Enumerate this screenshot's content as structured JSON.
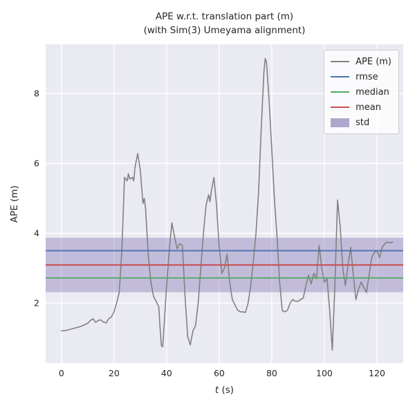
{
  "figure": {
    "title_line1": "APE w.r.t. translation part (m)",
    "title_line2": "(with Sim(3) Umeyama alignment)",
    "ylabel": "APE (m)",
    "xlabel_var": "t",
    "xlabel_rest": " (s)"
  },
  "colors": {
    "figure_bg": "#ffffff",
    "plot_bg": "#eaeaf2",
    "grid": "#ffffff",
    "text": "#262626",
    "ape": "#808080",
    "rmse": "#4c72b0",
    "median": "#55a868",
    "mean": "#c44e52",
    "std": "#8172b2"
  },
  "legend": {
    "items": [
      {
        "label": "APE (m)",
        "swatch": "line",
        "color_key": "ape"
      },
      {
        "label": "rmse",
        "swatch": "line",
        "color_key": "rmse"
      },
      {
        "label": "median",
        "swatch": "line",
        "color_key": "median"
      },
      {
        "label": "mean",
        "swatch": "line",
        "color_key": "mean"
      },
      {
        "label": "std",
        "swatch": "band",
        "color_key": "std"
      }
    ]
  },
  "chart_data": {
    "type": "line",
    "title": "APE w.r.t. translation part (m)\n(with Sim(3) Umeyama alignment)",
    "xlabel": "t (s)",
    "ylabel": "APE (m)",
    "xlim": [
      -6,
      130
    ],
    "ylim": [
      0.28,
      9.41
    ],
    "xticks": [
      0,
      20,
      40,
      60,
      80,
      100,
      120
    ],
    "yticks": [
      2,
      4,
      6,
      8
    ],
    "grid": true,
    "legend_position": "upper right",
    "stats": {
      "rmse": 3.5,
      "mean": 3.09,
      "median": 2.72,
      "std": 0.78,
      "std_band": [
        2.31,
        3.87
      ]
    },
    "series": [
      {
        "name": "APE (m)",
        "x": [
          0,
          2,
          4,
          6,
          8,
          10,
          11,
          12,
          13,
          14,
          15,
          16,
          17,
          18,
          19,
          20,
          21,
          22,
          23,
          24,
          25,
          25.5,
          26,
          27,
          27.5,
          28,
          29,
          30,
          31,
          31.5,
          32,
          33,
          34,
          35,
          36,
          37,
          37.5,
          38,
          38.5,
          39,
          40,
          41,
          42,
          43,
          44,
          45,
          46,
          47,
          48,
          49,
          50,
          51,
          52,
          53,
          54,
          55,
          56,
          56.5,
          57,
          58,
          59,
          60,
          61,
          62,
          63,
          64,
          65,
          66,
          67,
          68,
          69,
          70,
          71,
          72,
          73,
          74,
          75,
          76,
          77,
          77.5,
          78,
          79,
          80,
          81,
          82,
          83,
          84,
          85,
          86,
          87,
          88,
          89,
          90,
          91,
          92,
          93,
          94,
          95,
          96,
          97,
          98,
          99,
          100,
          101,
          102,
          103,
          104,
          105,
          106,
          107,
          108,
          109,
          110,
          111,
          112,
          113,
          114,
          115,
          116,
          117,
          118,
          119,
          120,
          121,
          122,
          123,
          124,
          125,
          126
        ],
        "y": [
          1.2,
          1.22,
          1.26,
          1.3,
          1.35,
          1.42,
          1.5,
          1.55,
          1.45,
          1.5,
          1.52,
          1.45,
          1.43,
          1.55,
          1.6,
          1.75,
          2.0,
          2.3,
          3.5,
          5.6,
          5.5,
          5.7,
          5.55,
          5.6,
          5.5,
          5.9,
          6.28,
          5.8,
          4.85,
          5.0,
          4.7,
          3.4,
          2.6,
          2.2,
          2.05,
          1.9,
          1.3,
          0.78,
          0.75,
          1.3,
          2.5,
          3.5,
          4.3,
          3.9,
          3.55,
          3.7,
          3.65,
          2.2,
          1.05,
          0.8,
          1.2,
          1.35,
          2.0,
          3.0,
          4.0,
          4.8,
          5.1,
          4.9,
          5.2,
          5.6,
          4.8,
          3.6,
          2.85,
          3.0,
          3.4,
          2.6,
          2.1,
          1.95,
          1.8,
          1.75,
          1.75,
          1.73,
          2.0,
          2.5,
          3.2,
          4.0,
          5.2,
          7.0,
          8.6,
          9.0,
          8.9,
          7.8,
          6.4,
          5.0,
          3.9,
          2.6,
          1.78,
          1.75,
          1.8,
          2.0,
          2.1,
          2.05,
          2.05,
          2.1,
          2.15,
          2.5,
          2.8,
          2.55,
          2.85,
          2.7,
          3.65,
          3.0,
          2.6,
          2.7,
          1.8,
          0.65,
          2.5,
          4.95,
          4.2,
          3.0,
          2.5,
          3.1,
          3.6,
          2.8,
          2.1,
          2.4,
          2.6,
          2.45,
          2.3,
          2.8,
          3.3,
          3.45,
          3.5,
          3.3,
          3.6,
          3.7,
          3.75,
          3.72,
          3.75
        ]
      }
    ]
  }
}
